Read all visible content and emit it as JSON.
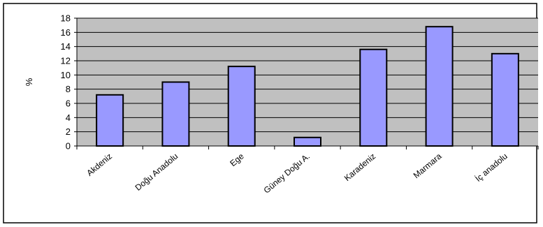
{
  "chart_data": {
    "type": "bar",
    "categories": [
      "Akdeniz",
      "Doğu Anadolu",
      "Ege",
      "Güney Doğu A.",
      "Karadeniz",
      "Marmara",
      "İç anadolu"
    ],
    "values": [
      7.2,
      9.0,
      11.2,
      1.2,
      13.6,
      16.8,
      13.0
    ],
    "ylabel": "%",
    "ylim": [
      0,
      18
    ],
    "yticks": [
      0,
      2,
      4,
      6,
      8,
      10,
      12,
      14,
      16,
      18
    ],
    "grid": true,
    "legend": "none",
    "colors": {
      "bar": "#9999ff",
      "plot_bg": "#c0c0c0",
      "bar_border": "#000000"
    }
  }
}
